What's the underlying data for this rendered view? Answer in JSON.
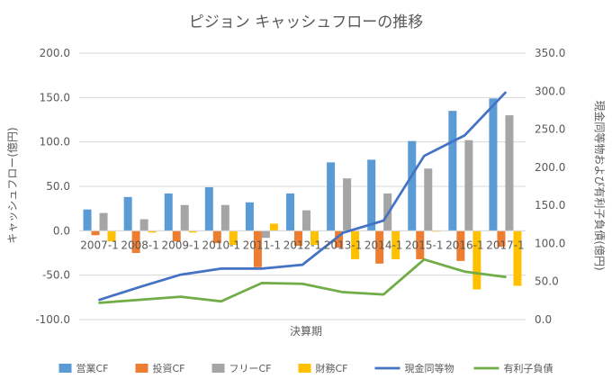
{
  "chart_data": {
    "type": "bar",
    "title": "ピジョン キャッシュフローの推移",
    "xlabel": "決算期",
    "ylabel": "キャッシュフロー(億円)",
    "y2label": "現金同等物および有利子負債(億円)",
    "ylim": [
      -100,
      200
    ],
    "y2lim": [
      0,
      350
    ],
    "yticks": [
      "200.0",
      "150.0",
      "100.0",
      "50.0",
      "0.0",
      "-50.0",
      "-100.0"
    ],
    "y2ticks": [
      "350.0",
      "300.0",
      "250.0",
      "200.0",
      "150.0",
      "100.0",
      "50.0",
      "0.0"
    ],
    "categories": [
      "2007-1",
      "2008-1",
      "2009-1",
      "2010-1",
      "2011-1",
      "2012-1",
      "2013-1",
      "2014-1",
      "2015-1",
      "2016-1",
      "2017-1"
    ],
    "series": [
      {
        "name": "営業CF",
        "kind": "bar",
        "axis": "left",
        "color": "#5B9BD5",
        "values": [
          24,
          38,
          42,
          49,
          32,
          42,
          77,
          80,
          101,
          135,
          149
        ]
      },
      {
        "name": "投資CF",
        "kind": "bar",
        "axis": "left",
        "color": "#ED7D31",
        "values": [
          -5,
          -25,
          -12,
          -14,
          -41,
          -17,
          -19,
          -37,
          -32,
          -34,
          -18
        ]
      },
      {
        "name": "フリーCF",
        "kind": "bar",
        "axis": "left",
        "color": "#A5A5A5",
        "values": [
          20,
          13,
          29,
          29,
          -8,
          23,
          59,
          42,
          70,
          102,
          130
        ]
      },
      {
        "name": "財務CF",
        "kind": "bar",
        "axis": "left",
        "color": "#FFC000",
        "values": [
          -12,
          -2,
          -2,
          -16,
          8,
          -16,
          -32,
          -32,
          -1,
          -66,
          -62
        ]
      },
      {
        "name": "現金同等物",
        "kind": "line",
        "axis": "right",
        "color": "#4472C4",
        "values": [
          26,
          43,
          59,
          67,
          67,
          72,
          114,
          130,
          215,
          242,
          298
        ]
      },
      {
        "name": "有利子負債",
        "kind": "line",
        "axis": "right",
        "color": "#70AD47",
        "values": [
          22,
          26,
          30,
          24,
          48,
          47,
          36,
          33,
          79,
          63,
          56
        ]
      }
    ]
  }
}
